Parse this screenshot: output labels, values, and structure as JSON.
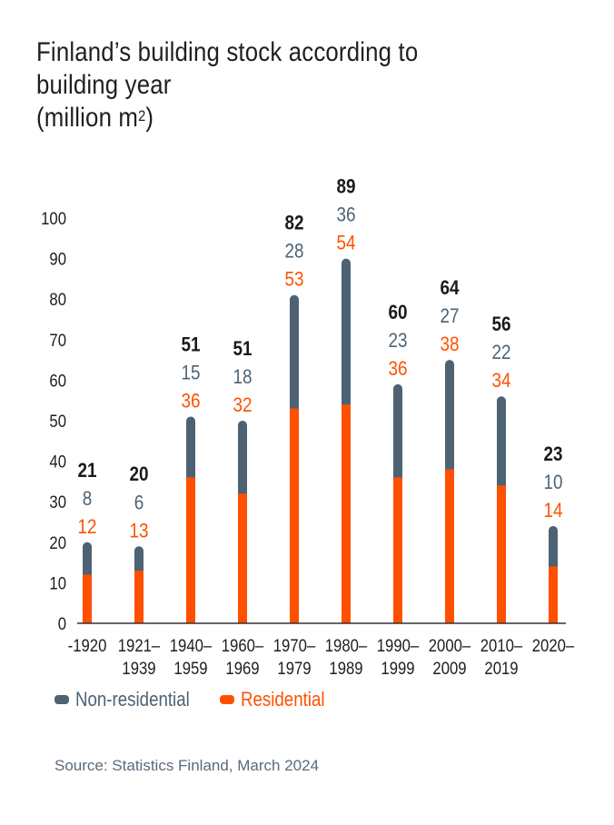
{
  "title": {
    "line1": "Finland’s building stock according to building year",
    "line2_prefix": "(million m",
    "line2_sup": "2",
    "line2_suffix": ")"
  },
  "legend": {
    "non_residential": "Non-residential",
    "residential": "Residential"
  },
  "source": "Source: Statistics Finland, March 2024",
  "colors": {
    "residential": "#ff5000",
    "non_residential": "#4d6374",
    "total": "#1a1a1a",
    "axis": "#333333"
  },
  "chart_data": {
    "type": "bar",
    "stacked": true,
    "title": "Finland’s building stock according to building year (million m2)",
    "xlabel": "",
    "ylabel": "",
    "ylim": [
      0,
      100
    ],
    "yticks": [
      0,
      10,
      20,
      30,
      40,
      50,
      60,
      70,
      80,
      90,
      100
    ],
    "categories": [
      [
        "-1920"
      ],
      [
        "1921–",
        "1939"
      ],
      [
        "1940–",
        "1959"
      ],
      [
        "1960–",
        "1969"
      ],
      [
        "1970–",
        "1979"
      ],
      [
        "1980–",
        "1989"
      ],
      [
        "1990–",
        "1999"
      ],
      [
        "2000–",
        "2009"
      ],
      [
        "2010–",
        "2019"
      ],
      [
        "2020–"
      ]
    ],
    "series": [
      {
        "name": "Residential",
        "values": [
          12,
          13,
          36,
          32,
          53,
          54,
          36,
          38,
          34,
          14
        ]
      },
      {
        "name": "Non-residential",
        "values": [
          8,
          6,
          15,
          18,
          28,
          36,
          23,
          27,
          22,
          10
        ]
      }
    ],
    "totals": [
      21,
      20,
      51,
      51,
      82,
      89,
      60,
      64,
      56,
      23
    ],
    "grid": false,
    "legend_position": "bottom-left"
  }
}
